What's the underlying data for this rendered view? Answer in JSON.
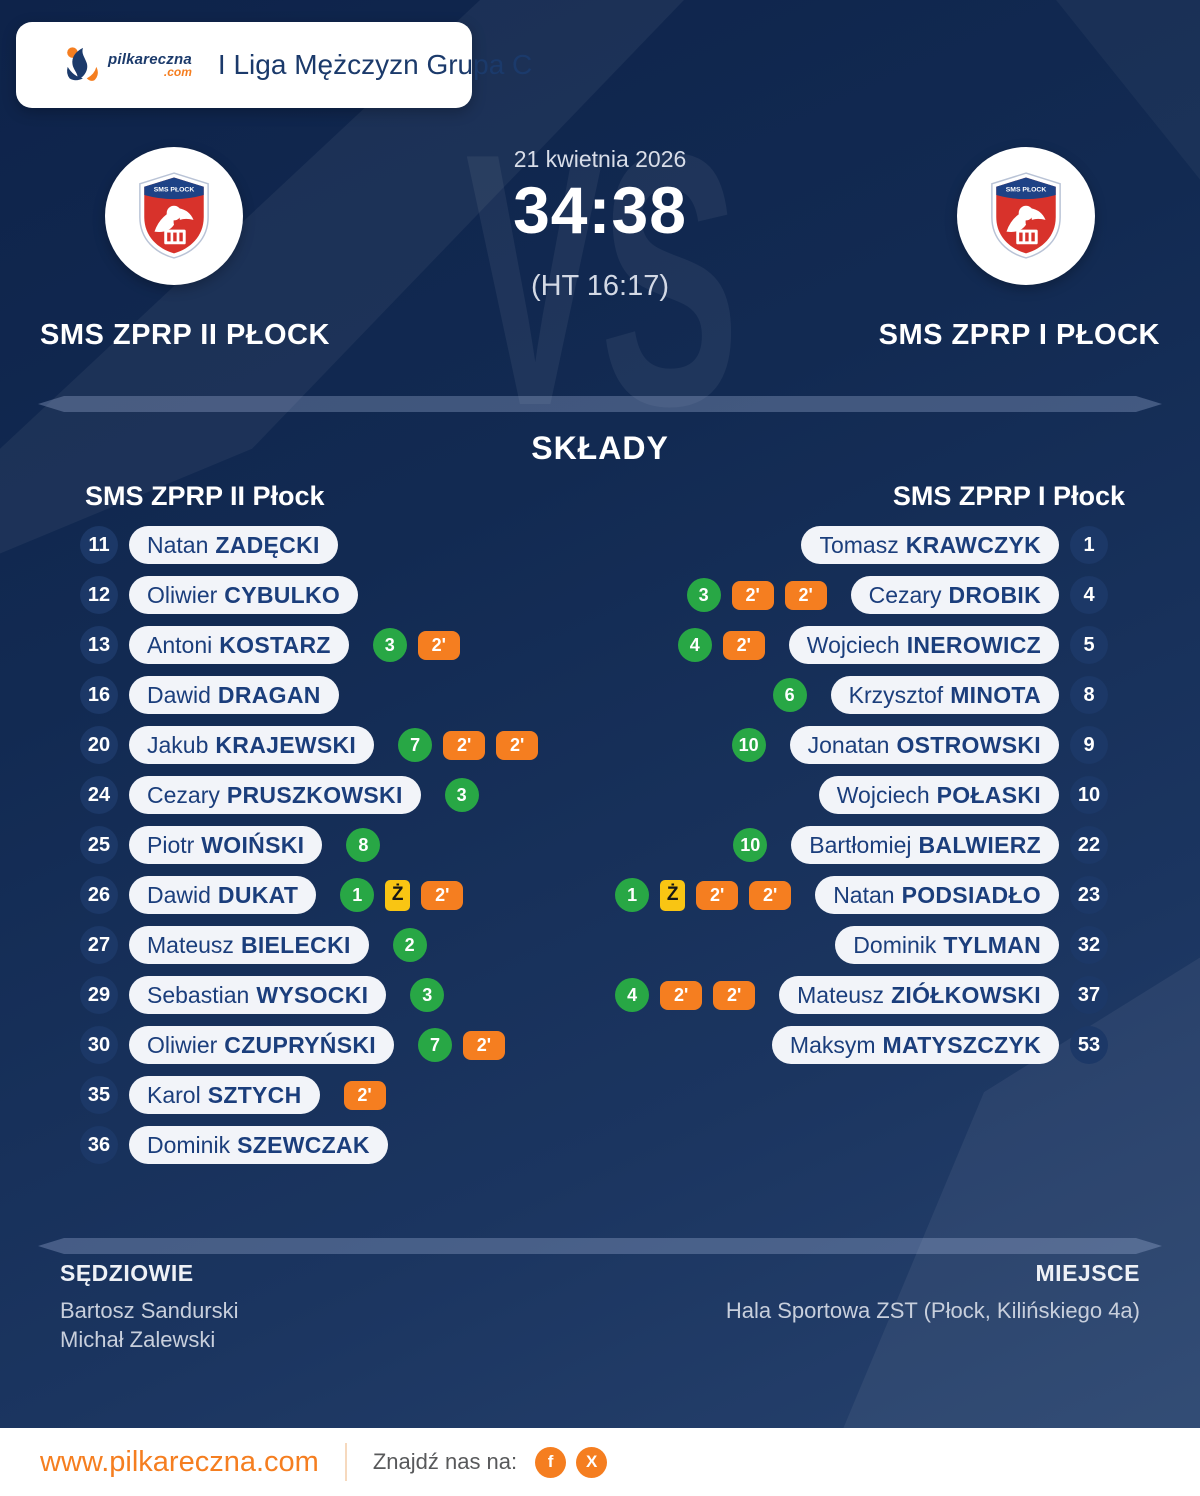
{
  "header": {
    "brand": "pilkareczna",
    "brand_tld": ".com",
    "league": "I Liga Mężczyzn Grupa C"
  },
  "match": {
    "date": "21 kwietnia 2026",
    "score": "34:38",
    "halftime": "(HT 16:17)",
    "vs": "VS",
    "crest_text": "SMS PŁOCK",
    "home": {
      "name": "SMS ZPRP II PŁOCK"
    },
    "away": {
      "name": "SMS ZPRP I PŁOCK"
    }
  },
  "lineups": {
    "title": "SKŁADY",
    "home_header": "SMS ZPRP II Płock",
    "away_header": "SMS ZPRP I Płock",
    "legend": {
      "two_min": "2'",
      "yellow_card": "Ż"
    },
    "home_players": [
      {
        "number": "11",
        "first": "Natan",
        "last": "ZADĘCKI",
        "goals": null,
        "yellow": false,
        "two_min": 0
      },
      {
        "number": "12",
        "first": "Oliwier",
        "last": "CYBULKO",
        "goals": null,
        "yellow": false,
        "two_min": 0
      },
      {
        "number": "13",
        "first": "Antoni",
        "last": "KOSTARZ",
        "goals": 3,
        "yellow": false,
        "two_min": 1
      },
      {
        "number": "16",
        "first": "Dawid",
        "last": "DRAGAN",
        "goals": null,
        "yellow": false,
        "two_min": 0
      },
      {
        "number": "20",
        "first": "Jakub",
        "last": "KRAJEWSKI",
        "goals": 7,
        "yellow": false,
        "two_min": 2
      },
      {
        "number": "24",
        "first": "Cezary",
        "last": "PRUSZKOWSKI",
        "goals": 3,
        "yellow": false,
        "two_min": 0
      },
      {
        "number": "25",
        "first": "Piotr",
        "last": "WOIŃSKI",
        "goals": 8,
        "yellow": false,
        "two_min": 0
      },
      {
        "number": "26",
        "first": "Dawid",
        "last": "DUKAT",
        "goals": 1,
        "yellow": true,
        "two_min": 1
      },
      {
        "number": "27",
        "first": "Mateusz",
        "last": "BIELECKI",
        "goals": 2,
        "yellow": false,
        "two_min": 0
      },
      {
        "number": "29",
        "first": "Sebastian",
        "last": "WYSOCKI",
        "goals": 3,
        "yellow": false,
        "two_min": 0
      },
      {
        "number": "30",
        "first": "Oliwier",
        "last": "CZUPRYŃSKI",
        "goals": 7,
        "yellow": false,
        "two_min": 1
      },
      {
        "number": "35",
        "first": "Karol",
        "last": "SZTYCH",
        "goals": null,
        "yellow": false,
        "two_min": 1
      },
      {
        "number": "36",
        "first": "Dominik",
        "last": "SZEWCZAK",
        "goals": null,
        "yellow": false,
        "two_min": 0
      }
    ],
    "away_players": [
      {
        "number": "1",
        "first": "Tomasz",
        "last": "KRAWCZYK",
        "goals": null,
        "yellow": false,
        "two_min": 0
      },
      {
        "number": "4",
        "first": "Cezary",
        "last": "DROBIK",
        "goals": 3,
        "yellow": false,
        "two_min": 2
      },
      {
        "number": "5",
        "first": "Wojciech",
        "last": "INEROWICZ",
        "goals": 4,
        "yellow": false,
        "two_min": 1
      },
      {
        "number": "8",
        "first": "Krzysztof",
        "last": "MINOTA",
        "goals": 6,
        "yellow": false,
        "two_min": 0
      },
      {
        "number": "9",
        "first": "Jonatan",
        "last": "OSTROWSKI",
        "goals": 10,
        "yellow": false,
        "two_min": 0
      },
      {
        "number": "10",
        "first": "Wojciech",
        "last": "POŁASKI",
        "goals": null,
        "yellow": false,
        "two_min": 0
      },
      {
        "number": "22",
        "first": "Bartłomiej",
        "last": "BALWIERZ",
        "goals": 10,
        "yellow": false,
        "two_min": 0
      },
      {
        "number": "23",
        "first": "Natan",
        "last": "PODSIADŁO",
        "goals": 1,
        "yellow": true,
        "two_min": 2
      },
      {
        "number": "32",
        "first": "Dominik",
        "last": "TYLMAN",
        "goals": null,
        "yellow": false,
        "two_min": 0
      },
      {
        "number": "37",
        "first": "Mateusz",
        "last": "ZIÓŁKOWSKI",
        "goals": 4,
        "yellow": false,
        "two_min": 2
      },
      {
        "number": "53",
        "first": "Maksym",
        "last": "MATYSZCZYK",
        "goals": null,
        "yellow": false,
        "two_min": 0
      }
    ]
  },
  "officials": {
    "referees_label": "SĘDZIOWIE",
    "referees": [
      "Bartosz Sandurski",
      "Michał Zalewski"
    ],
    "venue_label": "MIEJSCE",
    "venue": "Hala Sportowa ZST (Płock, Kilińskiego 4a)"
  },
  "footer": {
    "website": "www.pilkareczna.com",
    "find_us": "Znajdź nas na:",
    "social": [
      {
        "name": "facebook",
        "glyph": "f"
      },
      {
        "name": "x",
        "glyph": "X"
      }
    ]
  },
  "colors": {
    "background_navy": "#13294f",
    "accent_orange": "#f57e20",
    "goal_green": "#28a745",
    "card_yellow": "#f9c513",
    "pill_bg": "#f2f4f9",
    "navy_text": "#1b3e7c"
  }
}
